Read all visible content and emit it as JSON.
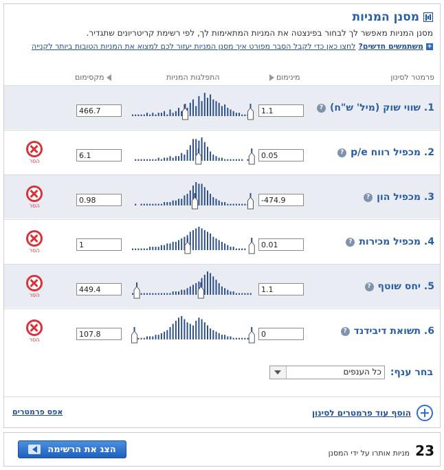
{
  "header": {
    "title": "מסנן המניות",
    "subtitle": "מסנן המניות מאפשר לך לבחור בפינצטה את המניות המתאימות לך, לפי רשימת קריטריונים שתגדיר.",
    "news_bold": "משתמשים חדשים?",
    "news_link": "לחצו כאן כדי לקבל הסבר מפורט איך מסנן המניות יעזור לכם למצוא את המניות הטובות ביותר לקנייה"
  },
  "columns": {
    "param": "פרמטר לסינון",
    "min": "מינימום",
    "dist": "התפלגות המניות",
    "max": "מקסימום"
  },
  "remove_label": "הסר",
  "filters": [
    {
      "name": "1. שווי שוק (מיל' ש\"ח)",
      "min": "1.1",
      "max": "466.7",
      "removable": false,
      "shade": true,
      "bars": [
        1,
        1,
        1,
        1,
        1,
        2,
        1,
        2,
        1,
        2,
        2,
        3,
        1,
        4,
        2,
        3,
        5,
        3,
        7,
        5,
        8,
        10,
        6,
        12,
        9,
        14,
        11,
        13,
        10,
        9,
        8,
        6,
        7,
        5,
        4,
        3,
        2,
        2,
        1,
        1,
        1,
        1
      ],
      "minHandle": 0.98,
      "maxHandle": 0.44
    },
    {
      "name": "2. מכפיל רווח p/e",
      "min": "0.05",
      "max": "6.1",
      "removable": true,
      "shade": false,
      "bars": [
        0,
        1,
        1,
        1,
        1,
        1,
        1,
        1,
        1,
        2,
        1,
        2,
        2,
        3,
        2,
        3,
        3,
        5,
        4,
        7,
        10,
        14,
        14,
        13,
        15,
        12,
        9,
        6,
        4,
        3,
        2,
        2,
        1,
        1,
        1,
        1,
        1,
        1,
        1,
        0,
        1,
        1
      ],
      "minHandle": 0.99,
      "maxHandle": 0.55
    },
    {
      "name": "3. מכפיל הון",
      "min": "-474.9",
      "max": "0.98",
      "removable": true,
      "shade": true,
      "bars": [
        0,
        1,
        0,
        1,
        1,
        1,
        1,
        1,
        1,
        1,
        1,
        2,
        2,
        2,
        3,
        3,
        4,
        4,
        6,
        7,
        9,
        12,
        14,
        13,
        13,
        11,
        9,
        7,
        5,
        4,
        3,
        2,
        2,
        1,
        1,
        1,
        1,
        1,
        1,
        1,
        1,
        1
      ],
      "minHandle": 0.98,
      "maxHandle": 0.52
    },
    {
      "name": "4. מכפיל מכירות",
      "min": "0.01",
      "max": "1",
      "removable": true,
      "shade": false,
      "bars": [
        1,
        1,
        1,
        1,
        1,
        1,
        2,
        2,
        2,
        2,
        3,
        3,
        4,
        4,
        5,
        5,
        6,
        7,
        8,
        9,
        11,
        12,
        13,
        14,
        13,
        12,
        11,
        10,
        8,
        7,
        6,
        5,
        4,
        3,
        2,
        2,
        1,
        1,
        1,
        1,
        0,
        0
      ],
      "minHandle": 0.99,
      "maxHandle": 0.46
    },
    {
      "name": "5. יחס שוטף",
      "min": "1.1",
      "max": "449.4",
      "removable": true,
      "shade": true,
      "bars": [
        1,
        1,
        1,
        1,
        1,
        1,
        1,
        1,
        1,
        1,
        1,
        1,
        1,
        1,
        2,
        2,
        2,
        3,
        3,
        4,
        5,
        6,
        7,
        8,
        10,
        12,
        14,
        13,
        11,
        9,
        7,
        5,
        4,
        3,
        2,
        2,
        1,
        1,
        1,
        1,
        1,
        1
      ],
      "minHandle": 0.57,
      "maxHandle": 0.04
    },
    {
      "name": "6. תשואת דיבידנד",
      "min": "0",
      "max": "107.8",
      "removable": true,
      "shade": false,
      "bars": [
        1,
        1,
        1,
        1,
        1,
        2,
        2,
        2,
        3,
        3,
        4,
        5,
        6,
        8,
        10,
        12,
        14,
        15,
        13,
        11,
        10,
        9,
        12,
        14,
        13,
        11,
        9,
        7,
        6,
        5,
        4,
        3,
        3,
        2,
        2,
        1,
        1,
        1,
        1,
        1,
        1,
        1
      ],
      "minHandle": 0.99,
      "maxHandle": 0.02
    }
  ],
  "branch": {
    "label": "בחר ענף:",
    "value": "כל הענפים"
  },
  "add_params": "הוסף עוד פרמטרים לסינון",
  "reset": "אפס פרמטרים",
  "result": {
    "count": "23",
    "text": "מניות אותרו על ידי המסנן"
  },
  "show_button": "הצג את הרשימה",
  "colors": {
    "accent": "#2a5ea5",
    "remove": "#d8323a",
    "bar": "#2b4f86"
  }
}
